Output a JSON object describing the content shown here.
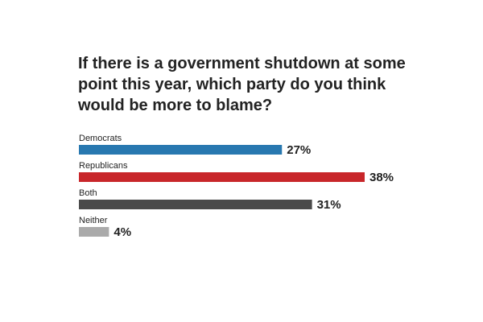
{
  "chart_data": {
    "type": "bar",
    "orientation": "horizontal",
    "title": "If there is a government shutdown at some point this year, which party do you think would be more to blame?",
    "categories": [
      "Democrats",
      "Republicans",
      "Both",
      "Neither"
    ],
    "values": [
      27,
      38,
      31,
      4
    ],
    "value_labels": [
      "27%",
      "38%",
      "31%",
      "4%"
    ],
    "colors": [
      "#2878b0",
      "#c8262a",
      "#4a4a4a",
      "#aaaaaa"
    ]
  }
}
